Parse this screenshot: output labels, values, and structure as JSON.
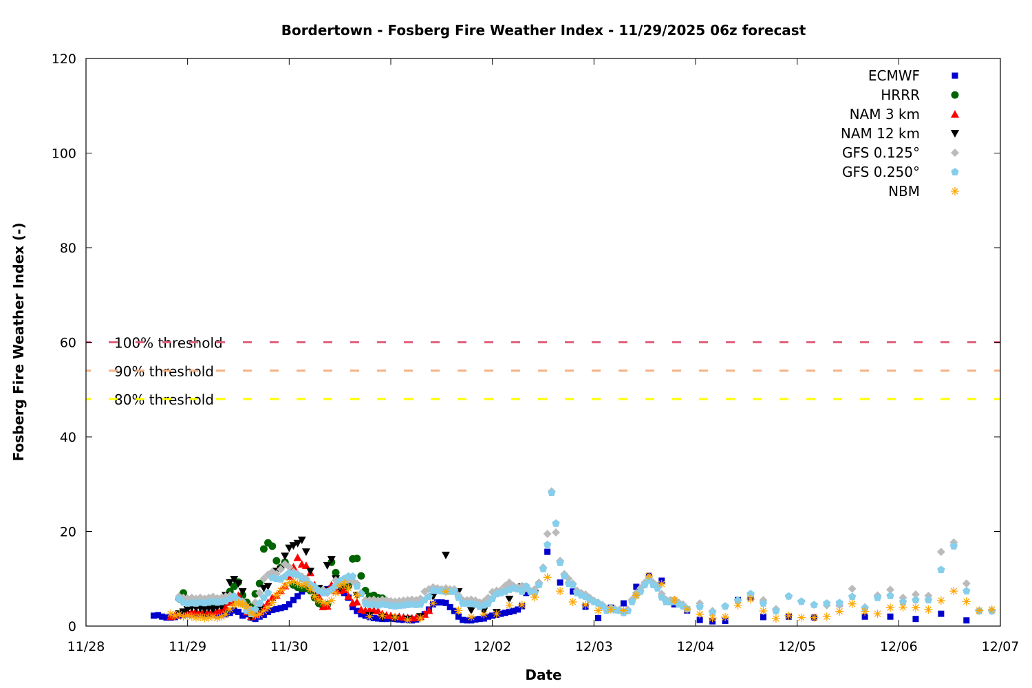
{
  "chart_data": {
    "type": "scatter",
    "title": "Bordertown - Fosberg Fire Weather Index - 11/29/2025 06z forecast",
    "xlabel": "Date",
    "ylabel": "Fosberg Fire Weather Index (-)",
    "xlim": [
      "2025-11-28T00:00",
      "2025-12-07T00:00"
    ],
    "ylim": [
      0,
      120
    ],
    "x_ticks": [
      "11/28",
      "11/29",
      "11/30",
      "12/01",
      "12/02",
      "12/03",
      "12/04",
      "12/05",
      "12/06",
      "12/07"
    ],
    "y_ticks": [
      0,
      20,
      40,
      60,
      80,
      100,
      120
    ],
    "grid": false,
    "legend_position": "top-right",
    "thresholds": [
      {
        "label": "100% threshold",
        "value": 60,
        "color": "#e0607c"
      },
      {
        "label": "90% threshold",
        "value": 54,
        "color": "#f4b183"
      },
      {
        "label": "80% threshold",
        "value": 48,
        "color": "#ffff00"
      }
    ],
    "series": [
      {
        "name": "ECMWF",
        "color": "#0000cc",
        "marker": "square",
        "segments": [
          {
            "start": "2025-11-28T16:00",
            "step_hours": 1,
            "values": [
              2.2,
              2.3,
              2.0,
              1.8,
              1.8,
              1.9,
              2.2,
              2.4,
              2.5,
              2.5,
              2.5,
              2.4,
              2.4,
              2.5,
              2.5,
              2.6,
              2.5,
              2.5,
              2.8,
              3.3,
              3.0,
              2.2,
              2.5,
              1.8,
              1.5,
              2.0,
              2.4,
              3.0,
              3.4,
              3.6,
              3.8,
              4.0,
              4.6,
              5.5,
              6.3,
              7.3,
              7.8,
              7.8,
              7.5,
              7.4,
              7.6,
              7.8,
              8.0,
              7.8,
              7.5,
              7.0,
              6.0,
              4.0,
              3.2,
              2.5,
              2.2,
              1.9,
              1.7,
              1.6,
              1.5,
              1.5,
              1.6,
              1.5,
              1.4,
              1.3,
              1.3,
              1.2,
              1.4,
              2.0,
              2.5,
              3.5,
              4.6,
              5.0,
              5.0,
              4.9,
              4.0,
              3.2,
              2.0,
              1.3,
              1.2,
              1.2,
              1.4,
              1.5,
              1.6,
              2.0,
              2.2,
              2.4,
              2.6,
              2.8,
              3.0,
              3.2,
              3.5,
              4.2,
              7.0
            ]
          },
          {
            "start": "2025-12-02T13:00",
            "step_hours": 3,
            "values": [
              15.7,
              9.2,
              7.3,
              4.1,
              1.7,
              3.9,
              4.8,
              8.3,
              10.6,
              9.6,
              4.6,
              3.3,
              1.3,
              1.0,
              1.1,
              5.5,
              6.1,
              1.9
            ]
          },
          {
            "start": "2025-12-04T22:00",
            "step_hours": 6,
            "values": [
              2.0,
              1.8,
              4.7,
              2.0,
              2.0,
              1.5,
              2.6,
              1.2
            ]
          }
        ]
      },
      {
        "name": "HRRR",
        "color": "#006400",
        "marker": "circle",
        "segments": [
          {
            "start": "2025-11-28T22:00",
            "step_hours": 1,
            "values": [
              5.8,
              7.0,
              5.5,
              5.0,
              4.8,
              4.6,
              4.5,
              4.5,
              4.5,
              4.8,
              5.0,
              3.5,
              7.3,
              8.4,
              9.3,
              6.5,
              5.0,
              4.0,
              6.8,
              9.0,
              16.3,
              17.6,
              16.9,
              13.8,
              12.4,
              13.5,
              11.0,
              8.7,
              8.2,
              8.0,
              8.0,
              7.5,
              6.0,
              4.8,
              4.2,
              4.5,
              13.5,
              11.3,
              8.5,
              8.0,
              8.5,
              14.2,
              14.3,
              10.6,
              7.5,
              6.3,
              6.5,
              6.0,
              5.9
            ]
          }
        ]
      },
      {
        "name": "NAM 3 km",
        "color": "#ff0000",
        "marker": "triangle-up",
        "segments": [
          {
            "start": "2025-11-28T20:00",
            "step_hours": 1,
            "values": [
              2.0,
              2.3,
              2.6,
              2.8,
              3.0,
              3.0,
              3.2,
              3.0,
              3.2,
              3.0,
              3.0,
              3.2,
              3.5,
              4.0,
              5.0,
              5.5,
              6.5,
              5.0,
              3.0,
              2.0,
              2.5,
              3.0,
              4.0,
              5.0,
              6.0,
              6.5,
              7.5,
              8.5,
              10.5,
              12.5,
              14.5,
              13.1,
              12.8,
              11.3,
              8.7,
              6.3,
              4.1,
              4.2,
              8.7,
              7.5,
              7.5,
              7.7,
              6.3,
              4.9,
              5.1,
              3.5,
              3.3,
              3.4,
              3.3,
              3.2,
              2.6,
              2.3,
              2.2,
              2.0,
              2.0,
              1.9,
              1.8,
              1.7,
              1.8,
              2.0,
              2.5,
              3.3
            ]
          }
        ]
      },
      {
        "name": "NAM 12 km",
        "color": "#000000",
        "marker": "triangle-down",
        "segments": [
          {
            "start": "2025-11-28T22:00",
            "step_hours": 1,
            "values": [
              2.6,
              3.0,
              3.5,
              3.9,
              3.8,
              3.8,
              3.5,
              3.8,
              3.5,
              4.0,
              4.1,
              6.5,
              9.2,
              9.9,
              9.0,
              7.3,
              4.0,
              1.9,
              3.0,
              3.5,
              8.0,
              8.4,
              10.5,
              11.6,
              12.0,
              14.8,
              16.5,
              17.0,
              17.5,
              18.2,
              15.7,
              11.6,
              8.0,
              8.0,
              7.6,
              12.8,
              14.1,
              10.0,
              8.0
            ]
          },
          {
            "start": "2025-11-30T16:00",
            "step_hours": 3,
            "values": [
              6.5,
              2.2,
              1.8,
              1.6,
              1.5,
              2.0,
              6.2,
              15.0,
              7.3,
              3.3,
              3.2,
              2.9,
              5.7,
              8.3,
              6.8
            ]
          }
        ]
      },
      {
        "name": "GFS 0.125°",
        "color": "#bbbbbb",
        "marker": "diamond",
        "segments": [
          {
            "start": "2025-11-28T22:00",
            "step_hours": 1,
            "values": [
              6.3,
              6.0,
              5.8,
              6.0,
              5.8,
              6.0,
              5.8,
              6.0,
              6.2,
              5.9,
              6.0,
              6.3,
              6.5,
              6.0,
              5.0,
              5.2,
              4.0,
              3.5,
              5.0,
              7.0,
              10.0,
              10.9,
              11.5,
              11.0,
              12.0,
              13.1,
              12.5,
              11.5,
              11.0,
              10.5,
              10.0,
              8.5,
              7.8,
              7.5,
              7.7,
              7.0,
              7.5,
              9.7,
              9.5,
              9.8,
              9.8,
              9.5,
              9.0,
              7.0,
              5.5,
              5.5,
              5.6,
              5.4,
              5.6,
              5.5,
              5.3,
              5.2,
              5.3,
              5.4,
              5.5,
              5.6,
              5.5,
              5.8,
              7.3,
              7.8,
              8.2,
              8.0,
              7.8,
              8.0,
              7.8,
              7.8,
              6.5,
              5.5,
              5.5,
              5.6,
              5.4,
              5.0,
              5.2,
              6.0,
              7.2,
              7.5,
              7.6,
              8.5,
              9.2,
              8.5,
              8.2,
              8.5,
              8.0,
              7.5,
              7.8,
              9.2,
              12.4,
              19.5,
              28.5,
              19.8,
              13.8,
              11.0,
              10.0,
              9.0,
              7.5,
              7.0,
              6.7,
              6.0,
              5.4,
              5.0,
              4.5,
              3.6,
              3.9,
              3.6,
              3.5,
              3.0,
              3.5,
              5.6,
              7.0,
              8.0,
              9.2,
              10.3,
              9.2,
              8.5,
              6.8,
              5.6,
              5.5,
              5.6,
              5.0,
              4.6,
              3.6
            ]
          },
          {
            "start": "2025-12-04T01:00",
            "step_hours": 3,
            "values": [
              4.8,
              3.2,
              4.2,
              5.5,
              6.8,
              5.5,
              3.6,
              6.3,
              5.2,
              4.5,
              4.4,
              4.4,
              7.9,
              4.0,
              6.5,
              7.7,
              6.0,
              6.7,
              6.4,
              15.7,
              17.7,
              9.0,
              3.2,
              3.2
            ]
          }
        ]
      },
      {
        "name": "GFS 0.250°",
        "color": "#87ceeb",
        "marker": "pentagon",
        "segments": [
          {
            "start": "2025-11-28T22:00",
            "step_hours": 1,
            "values": [
              5.8,
              5.0,
              4.8,
              4.9,
              4.8,
              5.0,
              4.9,
              5.0,
              5.2,
              5.0,
              5.1,
              5.3,
              5.8,
              6.3,
              5.5,
              4.6,
              3.2,
              2.6,
              3.5,
              4.8,
              6.0,
              7.0,
              10.2,
              10.0,
              9.9,
              10.5,
              11.2,
              11.0,
              10.8,
              10.0,
              9.5,
              8.8,
              8.3,
              7.5,
              7.0,
              7.2,
              7.7,
              8.5,
              9.5,
              10.0,
              10.5,
              10.5,
              8.4,
              6.8,
              4.8,
              4.5,
              4.6,
              4.4,
              4.6,
              4.5,
              4.3,
              4.2,
              4.3,
              4.4,
              4.5,
              4.6,
              4.5,
              4.6,
              5.5,
              6.2,
              7.5,
              7.5,
              7.4,
              7.3,
              7.3,
              7.3,
              6.0,
              4.8,
              4.8,
              4.7,
              4.6,
              4.1,
              4.4,
              4.8,
              5.8,
              6.8,
              7.0,
              7.3,
              7.7,
              8.0,
              7.8,
              7.3,
              8.4,
              7.3,
              7.0,
              8.7,
              12.1,
              17.2,
              28.2,
              21.7,
              13.4,
              10.6,
              9.0,
              8.7,
              7.0,
              6.5,
              6.2,
              5.5,
              5.1,
              4.8,
              4.2,
              3.3,
              3.6,
              3.4,
              3.3,
              2.8,
              3.2,
              5.1,
              6.5,
              7.3,
              8.7,
              9.7,
              8.7,
              8.0,
              6.1,
              5.1,
              5.1,
              5.1,
              4.6,
              4.2,
              3.6
            ]
          },
          {
            "start": "2025-12-04T01:00",
            "step_hours": 3,
            "values": [
              4.1,
              2.9,
              4.2,
              5.4,
              6.8,
              4.8,
              3.2,
              6.3,
              5.2,
              4.5,
              4.8,
              4.9,
              6.2,
              3.8,
              6.0,
              6.4,
              5.1,
              5.5,
              5.5,
              11.9,
              16.9,
              7.4,
              3.2,
              3.2
            ]
          }
        ]
      },
      {
        "name": "NBM",
        "color": "#ffa500",
        "marker": "asterisk",
        "segments": [
          {
            "start": "2025-11-28T20:00",
            "step_hours": 1,
            "values": [
              2.6,
              2.2,
              2.5,
              2.0,
              2.2,
              2.0,
              1.8,
              1.9,
              1.7,
              1.8,
              2.0,
              1.7,
              2.0,
              2.5,
              3.6,
              4.5,
              4.8,
              4.6,
              4.2,
              2.8,
              2.3,
              2.5,
              3.2,
              3.9,
              5.0,
              6.5,
              7.5,
              8.5,
              9.2,
              9.5,
              9.0,
              8.7,
              8.7,
              7.8,
              6.3,
              5.5,
              5.0,
              4.8,
              5.4,
              7.0,
              8.5,
              9.0,
              8.0
            ]
          },
          {
            "start": "2025-11-30T16:00",
            "step_hours": 3,
            "values": [
              6.5,
              2.0,
              2.2,
              1.9,
              1.3,
              1.7,
              4.8,
              7.3,
              3.3,
              1.9,
              2.5,
              2.6,
              4.4,
              4.5,
              6.1,
              10.3,
              7.4,
              5.1,
              4.5,
              3.3,
              3.5,
              3.3,
              6.5,
              10.6,
              8.9,
              5.5,
              3.6,
              2.5,
              1.7,
              1.9,
              4.4,
              5.7,
              3.2,
              1.6,
              2.2,
              1.8,
              1.8,
              2.0,
              3.1,
              4.7,
              3.1,
              2.6,
              3.9,
              4.0,
              3.9,
              3.5,
              5.4,
              7.4,
              5.2,
              3.3,
              3.5
            ]
          }
        ]
      }
    ]
  }
}
